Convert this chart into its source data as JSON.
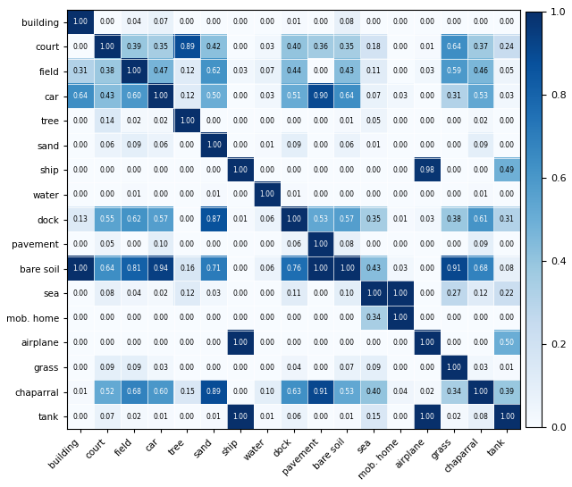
{
  "labels": [
    "building",
    "court",
    "field",
    "car",
    "tree",
    "sand",
    "ship",
    "water",
    "dock",
    "pavement",
    "bare soil",
    "sea",
    "mob. home",
    "airplane",
    "grass",
    "chaparral",
    "tank"
  ],
  "matrix": [
    [
      1.0,
      0.0,
      0.04,
      0.07,
      0.0,
      0.0,
      0.0,
      0.0,
      0.01,
      0.0,
      0.08,
      0.0,
      0.0,
      0.0,
      0.0,
      0.0,
      0.0
    ],
    [
      0.0,
      1.0,
      0.39,
      0.35,
      0.89,
      0.42,
      0.0,
      0.03,
      0.4,
      0.36,
      0.35,
      0.18,
      0.0,
      0.01,
      0.64,
      0.37,
      0.24
    ],
    [
      0.31,
      0.38,
      1.0,
      0.47,
      0.12,
      0.62,
      0.03,
      0.07,
      0.44,
      0.0,
      0.43,
      0.11,
      0.0,
      0.03,
      0.59,
      0.46,
      0.05
    ],
    [
      0.64,
      0.43,
      0.6,
      1.0,
      0.12,
      0.5,
      0.0,
      0.03,
      0.51,
      0.9,
      0.64,
      0.07,
      0.03,
      0.0,
      0.31,
      0.53,
      0.03
    ],
    [
      0.0,
      0.14,
      0.02,
      0.02,
      1.0,
      0.0,
      0.0,
      0.0,
      0.0,
      0.0,
      0.01,
      0.05,
      0.0,
      0.0,
      0.0,
      0.02,
      0.0
    ],
    [
      0.0,
      0.06,
      0.09,
      0.06,
      0.0,
      1.0,
      0.0,
      0.01,
      0.09,
      0.0,
      0.06,
      0.01,
      0.0,
      0.0,
      0.0,
      0.09,
      0.0
    ],
    [
      0.0,
      0.0,
      0.0,
      0.0,
      0.0,
      0.0,
      1.0,
      0.0,
      0.0,
      0.0,
      0.0,
      0.0,
      0.0,
      0.98,
      0.0,
      0.0,
      0.49
    ],
    [
      0.0,
      0.0,
      0.01,
      0.0,
      0.0,
      0.01,
      0.0,
      1.0,
      0.01,
      0.0,
      0.0,
      0.0,
      0.0,
      0.0,
      0.0,
      0.01,
      0.0
    ],
    [
      0.13,
      0.55,
      0.62,
      0.57,
      0.0,
      0.87,
      0.01,
      0.06,
      1.0,
      0.53,
      0.57,
      0.35,
      0.01,
      0.03,
      0.38,
      0.61,
      0.31
    ],
    [
      0.0,
      0.05,
      0.0,
      0.1,
      0.0,
      0.0,
      0.0,
      0.0,
      0.06,
      1.0,
      0.08,
      0.0,
      0.0,
      0.0,
      0.0,
      0.09,
      0.0
    ],
    [
      1.0,
      0.64,
      0.81,
      0.94,
      0.16,
      0.71,
      0.0,
      0.06,
      0.76,
      1.0,
      1.0,
      0.43,
      0.03,
      0.0,
      0.91,
      0.68,
      0.08
    ],
    [
      0.0,
      0.08,
      0.04,
      0.02,
      0.12,
      0.03,
      0.0,
      0.0,
      0.11,
      0.0,
      0.1,
      1.0,
      1.0,
      0.0,
      0.27,
      0.12,
      0.22
    ],
    [
      0.0,
      0.0,
      0.0,
      0.0,
      0.0,
      0.0,
      0.0,
      0.0,
      0.0,
      0.0,
      0.0,
      0.34,
      1.0,
      0.0,
      0.0,
      0.0,
      0.0
    ],
    [
      0.0,
      0.0,
      0.0,
      0.0,
      0.0,
      0.0,
      1.0,
      0.0,
      0.0,
      0.0,
      0.0,
      0.0,
      0.0,
      1.0,
      0.0,
      0.0,
      0.5
    ],
    [
      0.0,
      0.09,
      0.09,
      0.03,
      0.0,
      0.0,
      0.0,
      0.0,
      0.04,
      0.0,
      0.07,
      0.09,
      0.0,
      0.0,
      1.0,
      0.03,
      0.01
    ],
    [
      0.01,
      0.52,
      0.68,
      0.6,
      0.15,
      0.89,
      0.0,
      0.1,
      0.63,
      0.91,
      0.53,
      0.4,
      0.04,
      0.02,
      0.34,
      1.0,
      0.39
    ],
    [
      0.0,
      0.07,
      0.02,
      0.01,
      0.0,
      0.01,
      1.0,
      0.01,
      0.06,
      0.0,
      0.01,
      0.15,
      0.0,
      1.0,
      0.02,
      0.08,
      1.0
    ]
  ],
  "cmap": "Blues",
  "vmin": 0.0,
  "vmax": 1.0,
  "text_threshold": 0.5,
  "fontsize_annot": 5.5,
  "fontsize_tick": 7.5,
  "fontsize_cbar": 8,
  "figsize": [
    6.4,
    5.45
  ],
  "dpi": 100
}
